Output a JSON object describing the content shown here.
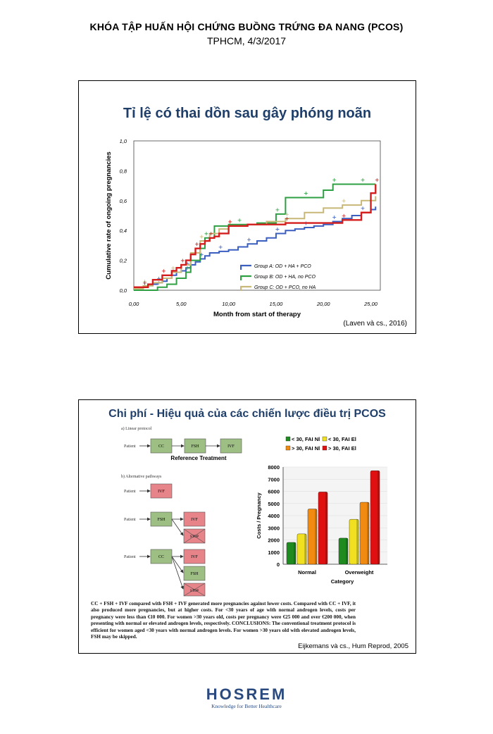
{
  "header": {
    "line1": "KHÓA TẬP HUẤN HỘI CHỨNG BUỒNG TRỨNG ĐA NANG (PCOS)",
    "line2": "TPHCM, 4/3/2017"
  },
  "slide1": {
    "title": "Tỉ lệ có thai dồn sau gây phóng noãn",
    "citation": "(Laven và cs., 2016)"
  },
  "slide2": {
    "title": "Chi phí - Hiệu quả của các chiến lược điều trị PCOS",
    "citation": "Eijkemans và cs., Hum Reprod, 2005",
    "flow": {
      "linear_heading": "a) Linear protocol",
      "alt_heading": "b) Alternative pathways",
      "reference_label": "Reference Treatment",
      "patient": "Patient",
      "cc": "CC",
      "fsh": "FSH",
      "ivf": "IVF",
      "stop": "STOP"
    },
    "abstract": "CC + FSH + IVF compared with FSH + IVF generated more pregnancies against lower costs. Compared with CC + IVF, it also produced more pregnancies, but at higher costs. For <30 years of age with normal androgen levels, costs per pregnancy were less than €10 000. For women >30 years old, costs per pregnancy were €25 000 and over €200 000, when presenting with normal or elevated androgen levels, respectively. CONCLUSIONS: The conventional treatment protocol is efficient for women aged <30 years with normal androgen levels. For women >30 years old with elevated androgen levels, FSH may be skipped."
  },
  "logo": {
    "name": "HOSREM",
    "tagline": "Knowledge for Better Healthcare"
  },
  "chart_data": [
    {
      "type": "line",
      "xlabel": "Month from start of therapy",
      "ylabel": "Cumulative rate of ongoing pregnancies",
      "xlim": [
        0,
        26
      ],
      "ylim": [
        0,
        1.0
      ],
      "xticks": [
        "0,00",
        "5,00",
        "10,00",
        "15,00",
        "20,00",
        "25,00"
      ],
      "yticks": [
        "0,0",
        "0,2",
        "0,4",
        "0,6",
        "0,8",
        "1,0"
      ],
      "legend_position": "bottom-right",
      "series": [
        {
          "name": "Group A: OD + HA + PCO",
          "color": "#3b5fc0",
          "x": [
            0,
            1,
            1.5,
            2,
            2.5,
            3,
            3.5,
            4,
            4.5,
            5,
            5.5,
            6,
            6.5,
            7,
            7.5,
            8,
            9,
            10,
            11,
            12,
            13,
            14,
            15,
            16,
            17,
            18,
            19,
            20,
            21,
            22,
            23,
            24,
            25,
            25.5
          ],
          "y": [
            0.02,
            0.02,
            0.03,
            0.04,
            0.05,
            0.06,
            0.08,
            0.1,
            0.12,
            0.13,
            0.15,
            0.17,
            0.19,
            0.21,
            0.23,
            0.25,
            0.26,
            0.27,
            0.29,
            0.31,
            0.33,
            0.35,
            0.38,
            0.4,
            0.41,
            0.42,
            0.43,
            0.44,
            0.46,
            0.48,
            0.5,
            0.52,
            0.54,
            0.56
          ]
        },
        {
          "name": "Group B: OD + HA, no PCO",
          "color": "#2ea043",
          "x": [
            0,
            2.5,
            3.5,
            4.5,
            5.5,
            6,
            7,
            7.5,
            8.5,
            10,
            11,
            12,
            13,
            15,
            16,
            17,
            18,
            19,
            20,
            21,
            22,
            23,
            24,
            25,
            25.5
          ],
          "y": [
            0.0,
            0.02,
            0.04,
            0.08,
            0.12,
            0.2,
            0.28,
            0.35,
            0.43,
            0.44,
            0.44,
            0.44,
            0.45,
            0.51,
            0.62,
            0.62,
            0.62,
            0.62,
            0.67,
            0.71,
            0.71,
            0.71,
            0.71,
            0.71,
            0.71
          ]
        },
        {
          "name": "Group C: OD + PCO, no HA",
          "color": "#c8b878",
          "x": [
            0,
            1,
            2,
            3,
            4,
            5,
            6,
            7,
            8,
            9,
            10,
            12,
            14,
            16,
            18,
            20,
            22,
            24,
            25.5
          ],
          "y": [
            0.01,
            0.03,
            0.05,
            0.08,
            0.12,
            0.17,
            0.25,
            0.33,
            0.38,
            0.41,
            0.43,
            0.44,
            0.46,
            0.48,
            0.52,
            0.55,
            0.57,
            0.6,
            0.63
          ]
        },
        {
          "name": "",
          "color": "#d41e1e",
          "x": [
            0,
            1,
            1.5,
            2,
            3,
            4,
            4.5,
            5,
            5.5,
            6,
            6.5,
            7,
            7.5,
            8,
            8.5,
            9,
            10,
            12,
            14,
            16,
            18,
            20,
            22,
            24,
            25,
            25.5
          ],
          "y": [
            0.02,
            0.02,
            0.04,
            0.07,
            0.1,
            0.13,
            0.15,
            0.17,
            0.2,
            0.24,
            0.28,
            0.31,
            0.33,
            0.35,
            0.36,
            0.38,
            0.43,
            0.44,
            0.44,
            0.45,
            0.45,
            0.45,
            0.47,
            0.52,
            0.65,
            0.71
          ]
        }
      ]
    },
    {
      "type": "bar",
      "categories": [
        "Normal",
        "Overweight"
      ],
      "xlabel": "Category",
      "ylabel": "Costs / Pregnancy",
      "ylim": [
        0,
        8000
      ],
      "yticks": [
        "0",
        "1000",
        "2000",
        "3000",
        "4000",
        "5000",
        "6000",
        "7000",
        "8000"
      ],
      "legend_position": "top",
      "series": [
        {
          "name": "< 30, FAI Nl",
          "color": "#1f8a1f",
          "values": [
            1800,
            2150
          ]
        },
        {
          "name": "< 30, FAI El",
          "color": "#f0e020",
          "values": [
            2500,
            3700
          ]
        },
        {
          "name": "> 30, FAI Nl",
          "color": "#f08a10",
          "values": [
            4550,
            5100
          ]
        },
        {
          "name": "> 30, FAI El",
          "color": "#e01010",
          "values": [
            5950,
            7700
          ]
        }
      ]
    }
  ]
}
